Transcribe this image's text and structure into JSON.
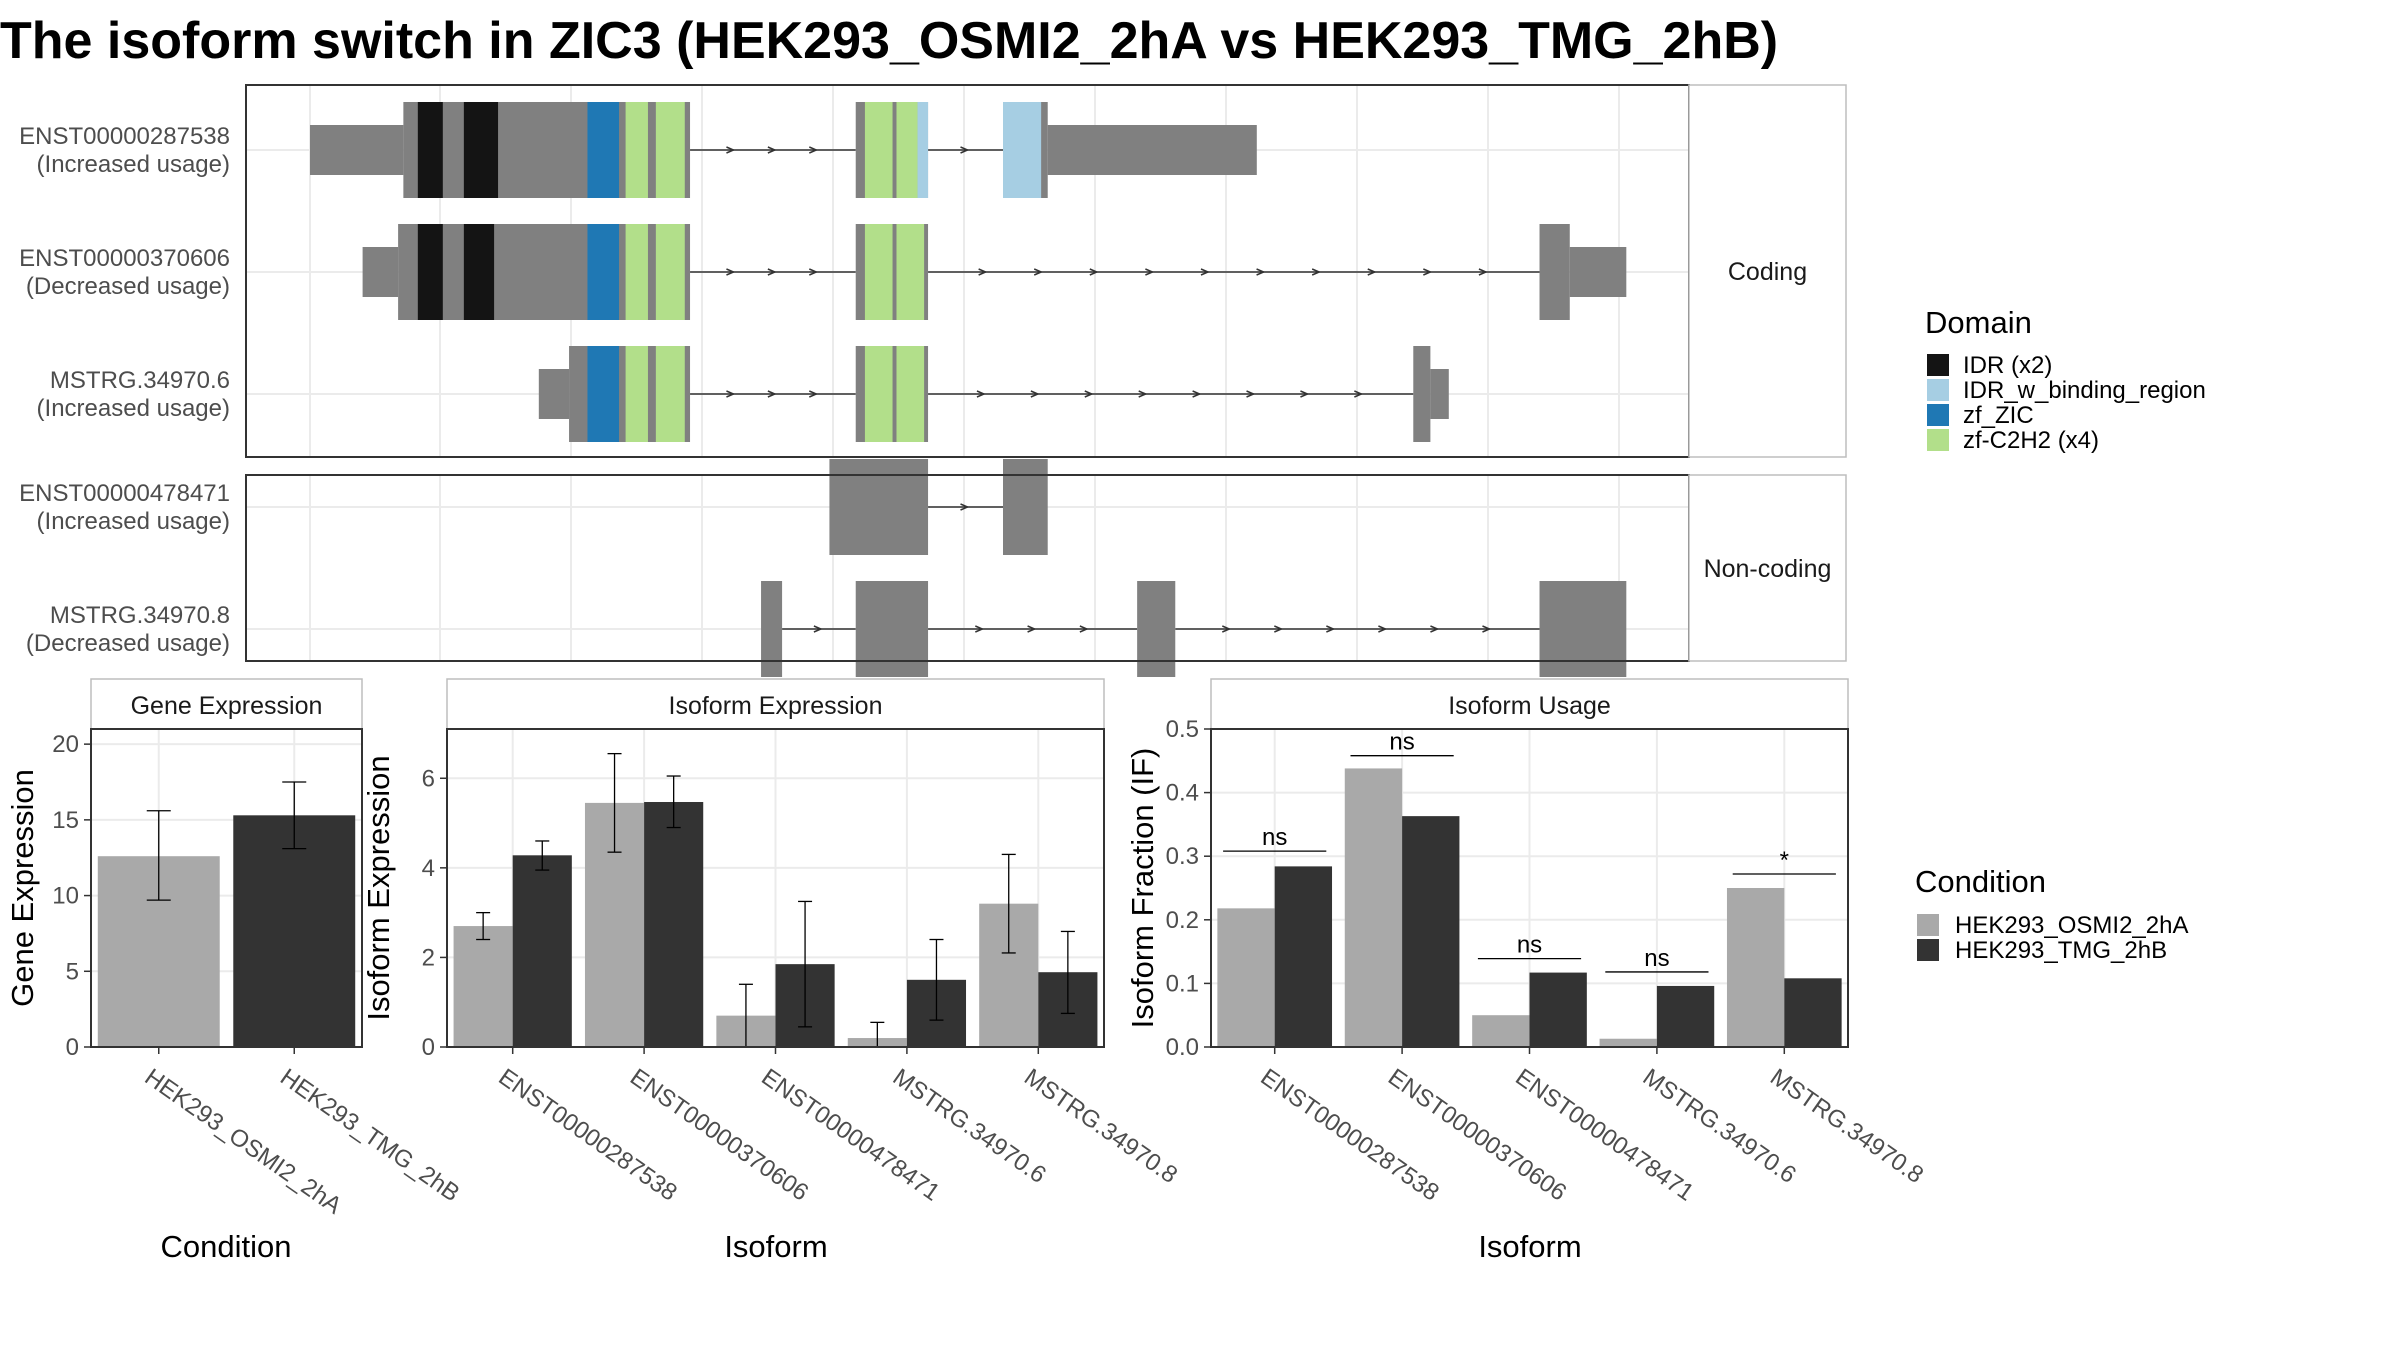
{
  "title": "The isoform switch in ZIC3 (HEK293_OSMI2_2hA vs HEK293_TMG_2hB)",
  "colors": {
    "exon": "#808080",
    "intron": "#333333",
    "IDR": "#141414",
    "IDR_w_binding_region": "#a6cee3",
    "zf_ZIC": "#1f78b4",
    "zf-C2H2": "#b2df8a",
    "condition_a": "#a9a9a9",
    "condition_b": "#333333",
    "panel_border": "#333333",
    "grid": "#ebebeb",
    "strip_border": "#bdbdbd"
  },
  "structure": {
    "genomic_range": [
      0,
      1000
    ],
    "facets": [
      {
        "label": "Coding",
        "transcripts": [
          {
            "id": "ENST00000287538",
            "usage": "(Increased usage)",
            "exons": [
              [
                0,
                71,
                "utr"
              ],
              [
                71,
                289,
                "cds"
              ],
              [
                415,
                470,
                "cds"
              ],
              [
                527,
                561,
                "cds"
              ],
              [
                561,
                720,
                "utr"
              ]
            ],
            "domains": [
              [
                82,
                101,
                "IDR"
              ],
              [
                117,
                143,
                "IDR"
              ],
              [
                211,
                235,
                "zf_ZIC"
              ],
              [
                240,
                257,
                "zf-C2H2"
              ],
              [
                263,
                285,
                "zf-C2H2"
              ],
              [
                422,
                443,
                "zf-C2H2"
              ],
              [
                446,
                462,
                "zf-C2H2"
              ],
              [
                462,
                470,
                "IDR_w_binding_region"
              ],
              [
                527,
                556,
                "IDR_w_binding_region"
              ]
            ]
          },
          {
            "id": "ENST00000370606",
            "usage": "(Decreased usage)",
            "exons": [
              [
                40,
                67,
                "utr"
              ],
              [
                67,
                289,
                "cds"
              ],
              [
                415,
                470,
                "cds"
              ],
              [
                935,
                958,
                "cds"
              ],
              [
                958,
                1001,
                "utr"
              ]
            ],
            "domains": [
              [
                82,
                101,
                "IDR"
              ],
              [
                117,
                140,
                "IDR"
              ],
              [
                211,
                235,
                "zf_ZIC"
              ],
              [
                240,
                257,
                "zf-C2H2"
              ],
              [
                263,
                285,
                "zf-C2H2"
              ],
              [
                422,
                443,
                "zf-C2H2"
              ],
              [
                446,
                467,
                "zf-C2H2"
              ]
            ]
          },
          {
            "id": "MSTRG.34970.6",
            "usage": "(Increased usage)",
            "exons": [
              [
                174,
                197,
                "utr"
              ],
              [
                197,
                289,
                "cds"
              ],
              [
                415,
                470,
                "cds"
              ],
              [
                839,
                852,
                "cds"
              ],
              [
                852,
                866,
                "utr"
              ]
            ],
            "domains": [
              [
                211,
                235,
                "zf_ZIC"
              ],
              [
                240,
                257,
                "zf-C2H2"
              ],
              [
                263,
                285,
                "zf-C2H2"
              ],
              [
                422,
                443,
                "zf-C2H2"
              ],
              [
                446,
                467,
                "zf-C2H2"
              ]
            ]
          }
        ]
      },
      {
        "label": "Non-coding",
        "transcripts": [
          {
            "id": "ENST00000478471",
            "usage": "(Increased usage)",
            "exons": [
              [
                395,
                470,
                "cds"
              ],
              [
                527,
                561,
                "cds"
              ]
            ],
            "domains": []
          },
          {
            "id": "MSTRG.34970.8",
            "usage": "(Decreased usage)",
            "exons": [
              [
                343,
                359,
                "cds"
              ],
              [
                415,
                470,
                "cds"
              ],
              [
                629,
                658,
                "cds"
              ],
              [
                935,
                1001,
                "cds"
              ]
            ],
            "domains": []
          }
        ]
      }
    ]
  },
  "chart_data": [
    {
      "type": "bar",
      "title": "Gene Expression",
      "xlabel": "Condition",
      "ylabel": "Gene Expression",
      "ylim": [
        0,
        21
      ],
      "yticks": [
        0,
        5,
        10,
        15,
        20
      ],
      "categories": [
        "HEK293_OSMI2_2hA",
        "HEK293_TMG_2hB"
      ],
      "values": [
        12.6,
        15.3
      ],
      "errors": [
        [
          9.7,
          15.6
        ],
        [
          13.1,
          17.5
        ]
      ]
    },
    {
      "type": "bar",
      "title": "Isoform Expression",
      "xlabel": "Isoform",
      "ylabel": "Isoform Expression",
      "ylim": [
        0,
        7.1
      ],
      "yticks": [
        0,
        2,
        4,
        6
      ],
      "categories": [
        "ENST00000287538",
        "ENST00000370606",
        "ENST00000478471",
        "MSTRG.34970.6",
        "MSTRG.34970.8"
      ],
      "series": [
        {
          "name": "HEK293_OSMI2_2hA",
          "values": [
            2.7,
            5.45,
            0.7,
            0.2,
            3.2
          ],
          "errors": [
            [
              2.4,
              3.0
            ],
            [
              4.35,
              6.55
            ],
            [
              0.0,
              1.4
            ],
            [
              0.0,
              0.55
            ],
            [
              2.1,
              4.3
            ]
          ]
        },
        {
          "name": "HEK293_TMG_2hB",
          "values": [
            4.28,
            5.47,
            1.85,
            1.5,
            1.67
          ],
          "errors": [
            [
              3.95,
              4.6
            ],
            [
              4.9,
              6.05
            ],
            [
              0.45,
              3.25
            ],
            [
              0.6,
              2.4
            ],
            [
              0.75,
              2.58
            ]
          ]
        }
      ]
    },
    {
      "type": "bar",
      "title": "Isoform Usage",
      "xlabel": "Isoform",
      "ylabel": "Isoform Fraction (IF)",
      "ylim": [
        0,
        0.5
      ],
      "yticks": [
        0.0,
        0.1,
        0.2,
        0.3,
        0.4,
        0.5
      ],
      "categories": [
        "ENST00000287538",
        "ENST00000370606",
        "ENST00000478471",
        "MSTRG.34970.6",
        "MSTRG.34970.8"
      ],
      "series": [
        {
          "name": "HEK293_OSMI2_2hA",
          "values": [
            0.218,
            0.438,
            0.05,
            0.013,
            0.25
          ]
        },
        {
          "name": "HEK293_TMG_2hB",
          "values": [
            0.284,
            0.363,
            0.117,
            0.096,
            0.108
          ]
        }
      ],
      "significance": [
        {
          "label": "ns",
          "y": 0.308
        },
        {
          "label": "ns",
          "y": 0.458
        },
        {
          "label": "ns",
          "y": 0.139
        },
        {
          "label": "ns",
          "y": 0.118
        },
        {
          "label": "*",
          "y": 0.272
        }
      ]
    }
  ],
  "legends": {
    "domain": {
      "title": "Domain",
      "items": [
        {
          "label": "IDR (x2)",
          "key": "IDR"
        },
        {
          "label": "IDR_w_binding_region",
          "key": "IDR_w_binding_region"
        },
        {
          "label": "zf_ZIC",
          "key": "zf_ZIC"
        },
        {
          "label": "zf-C2H2 (x4)",
          "key": "zf-C2H2"
        }
      ]
    },
    "condition": {
      "title": "Condition",
      "items": [
        {
          "label": "HEK293_OSMI2_2hA",
          "key": "condition_a"
        },
        {
          "label": "HEK293_TMG_2hB",
          "key": "condition_b"
        }
      ]
    }
  }
}
